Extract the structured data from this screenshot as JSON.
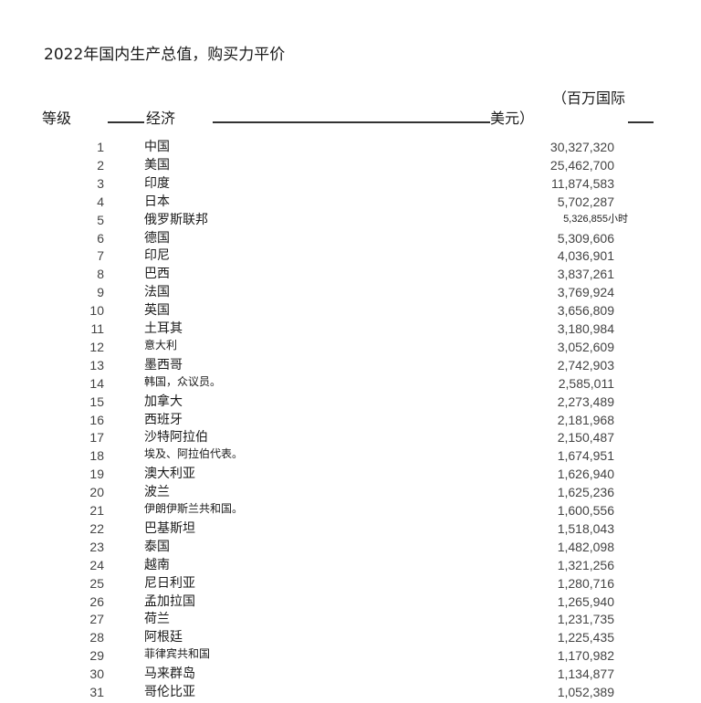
{
  "title": "2022年国内生产总值，购买力平价",
  "header": {
    "rank": "等级",
    "economy": "经济",
    "unit_line1": "（百万国际",
    "unit_line2": "美元）"
  },
  "rows": [
    {
      "rank": "1",
      "name": "中国",
      "value": "30,327,320"
    },
    {
      "rank": "2",
      "name": "美国",
      "value": "25,462,700"
    },
    {
      "rank": "3",
      "name": "印度",
      "value": "11,874,583"
    },
    {
      "rank": "4",
      "name": "日本",
      "value": "5,702,287"
    },
    {
      "rank": "5",
      "name": "俄罗斯联邦",
      "value": "5,326,855小时"
    },
    {
      "rank": "6",
      "name": "德国",
      "value": "5,309,606"
    },
    {
      "rank": "7",
      "name": "印尼",
      "value": "4,036,901"
    },
    {
      "rank": "8",
      "name": "巴西",
      "value": "3,837,261"
    },
    {
      "rank": "9",
      "name": "法国",
      "value": "3,769,924"
    },
    {
      "rank": "10",
      "name": "英国",
      "value": "3,656,809"
    },
    {
      "rank": "11",
      "name": "土耳其",
      "value": "3,180,984"
    },
    {
      "rank": "12",
      "name": "意大利",
      "value": "3,052,609"
    },
    {
      "rank": "13",
      "name": "墨西哥",
      "value": "2,742,903"
    },
    {
      "rank": "14",
      "name": "韩国，众议员。",
      "value": "2,585,011"
    },
    {
      "rank": "15",
      "name": "加拿大",
      "value": "2,273,489"
    },
    {
      "rank": "16",
      "name": "西班牙",
      "value": "2,181,968"
    },
    {
      "rank": "17",
      "name": "沙特阿拉伯",
      "value": "2,150,487"
    },
    {
      "rank": "18",
      "name": "埃及、阿拉伯代表。",
      "value": "1,674,951"
    },
    {
      "rank": "19",
      "name": "澳大利亚",
      "value": "1,626,940"
    },
    {
      "rank": "20",
      "name": "波兰",
      "value": "1,625,236"
    },
    {
      "rank": "21",
      "name": "伊朗伊斯兰共和国。",
      "value": "1,600,556"
    },
    {
      "rank": "22",
      "name": "巴基斯坦",
      "value": "1,518,043"
    },
    {
      "rank": "23",
      "name": "泰国",
      "value": "1,482,098"
    },
    {
      "rank": "24",
      "name": "越南",
      "value": "1,321,256"
    },
    {
      "rank": "25",
      "name": "尼日利亚",
      "value": "1,280,716"
    },
    {
      "rank": "26",
      "name": "孟加拉国",
      "value": "1,265,940"
    },
    {
      "rank": "27",
      "name": "荷兰",
      "value": "1,231,735"
    },
    {
      "rank": "28",
      "name": "阿根廷",
      "value": "1,225,435"
    },
    {
      "rank": "29",
      "name": "菲律宾共和国",
      "value": "1,170,982"
    },
    {
      "rank": "30",
      "name": "马来群岛",
      "value": "1,134,877"
    },
    {
      "rank": "31",
      "name": "哥伦比亚",
      "value": "1,052,389"
    }
  ]
}
